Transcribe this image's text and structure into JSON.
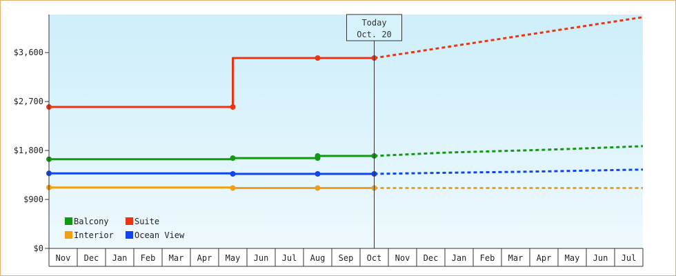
{
  "chart_data": {
    "type": "line",
    "title": "",
    "xlabel": "",
    "ylabel": "",
    "ylim": [
      0,
      4300
    ],
    "y_ticks": [
      {
        "value": 0,
        "label": "$0"
      },
      {
        "value": 900,
        "label": "$900"
      },
      {
        "value": 1800,
        "label": "$1,800"
      },
      {
        "value": 2700,
        "label": "$2,700"
      },
      {
        "value": 3600,
        "label": "$3,600"
      }
    ],
    "x_categories": [
      "Nov",
      "Dec",
      "Jan",
      "Feb",
      "Mar",
      "Apr",
      "May",
      "Jun",
      "Jul",
      "Aug",
      "Sep",
      "Oct",
      "Nov",
      "Dec",
      "Jan",
      "Feb",
      "Mar",
      "Apr",
      "May",
      "Jun",
      "Jul"
    ],
    "today_marker": {
      "line1": "Today",
      "line2": "Oct. 20",
      "x": 11.5
    },
    "grid": false,
    "legend_position": "bottom-left",
    "series": [
      {
        "name": "Balcony",
        "color": "#119911",
        "actual": [
          [
            0,
            1640
          ],
          [
            6.5,
            1640
          ],
          [
            6.5,
            1660
          ],
          [
            9.5,
            1660
          ],
          [
            9.5,
            1700
          ],
          [
            11.5,
            1700
          ]
        ],
        "markers": [
          [
            0,
            1640
          ],
          [
            6.5,
            1660
          ],
          [
            9.5,
            1660
          ],
          [
            9.5,
            1700
          ],
          [
            11.5,
            1700
          ]
        ],
        "forecast": [
          [
            11.5,
            1700
          ],
          [
            14,
            1760
          ],
          [
            16,
            1790
          ],
          [
            18,
            1820
          ],
          [
            20,
            1860
          ],
          [
            21,
            1880
          ]
        ]
      },
      {
        "name": "Suite",
        "color": "#ee3311",
        "actual": [
          [
            0,
            2600
          ],
          [
            6.5,
            2600
          ],
          [
            6.5,
            3500
          ],
          [
            9.5,
            3500
          ],
          [
            11.5,
            3500
          ]
        ],
        "markers": [
          [
            0,
            2600
          ],
          [
            6.5,
            2600
          ],
          [
            9.5,
            3500
          ],
          [
            11.5,
            3500
          ]
        ],
        "forecast": [
          [
            11.5,
            3500
          ],
          [
            21,
            4250
          ]
        ]
      },
      {
        "name": "Interior",
        "color": "#f0a010",
        "actual": [
          [
            0,
            1120
          ],
          [
            6.5,
            1120
          ],
          [
            6.5,
            1110
          ],
          [
            9.5,
            1110
          ],
          [
            11.5,
            1110
          ]
        ],
        "markers": [
          [
            0,
            1120
          ],
          [
            6.5,
            1110
          ],
          [
            9.5,
            1110
          ],
          [
            11.5,
            1110
          ]
        ],
        "forecast": [
          [
            11.5,
            1110
          ],
          [
            21,
            1110
          ]
        ]
      },
      {
        "name": "Ocean View",
        "color": "#1144ee",
        "actual": [
          [
            0,
            1380
          ],
          [
            6.5,
            1380
          ],
          [
            6.5,
            1370
          ],
          [
            9.5,
            1370
          ],
          [
            11.5,
            1370
          ]
        ],
        "markers": [
          [
            0,
            1380
          ],
          [
            6.5,
            1370
          ],
          [
            9.5,
            1370
          ],
          [
            11.5,
            1370
          ]
        ],
        "forecast": [
          [
            11.5,
            1370
          ],
          [
            14,
            1390
          ],
          [
            17,
            1410
          ],
          [
            21,
            1450
          ]
        ]
      }
    ]
  }
}
